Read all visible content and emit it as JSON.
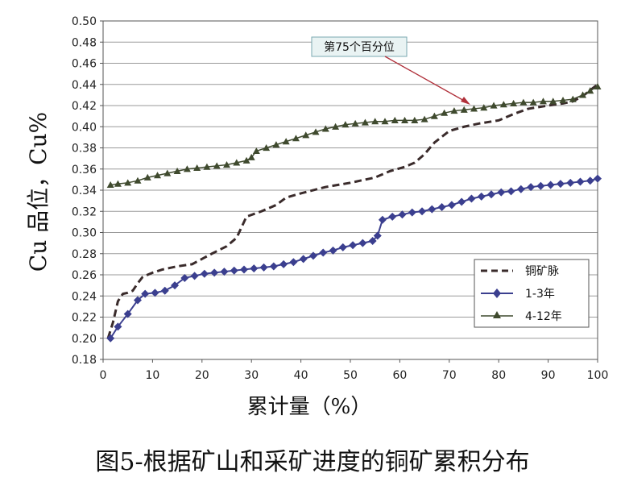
{
  "chart_data": {
    "type": "line",
    "ylabel": "Cu 品位，Cu%",
    "xlabel": "累计量（%）",
    "xlim": [
      0,
      100
    ],
    "ylim": [
      0.18,
      0.5
    ],
    "x_ticks": [
      "0",
      "10",
      "20",
      "30",
      "40",
      "50",
      "60",
      "70",
      "80",
      "90",
      "100"
    ],
    "y_ticks": [
      "0.18",
      "0.20",
      "0.22",
      "0.24",
      "0.26",
      "0.28",
      "0.30",
      "0.32",
      "0.34",
      "0.36",
      "0.38",
      "0.40",
      "0.42",
      "0.44",
      "0.46",
      "0.48",
      "0.50"
    ],
    "grid": true,
    "legend_position": "bottom-right",
    "annotation": {
      "text": "第75个百分位",
      "points_to": [
        75,
        0.42
      ]
    },
    "series": [
      {
        "name": "铜矿脉",
        "style": "dashed",
        "color": "#3a2b2b",
        "points": [
          [
            1,
            0.2
          ],
          [
            2,
            0.215
          ],
          [
            3,
            0.235
          ],
          [
            4,
            0.242
          ],
          [
            5,
            0.243
          ],
          [
            6,
            0.245
          ],
          [
            7,
            0.252
          ],
          [
            8,
            0.258
          ],
          [
            10,
            0.262
          ],
          [
            12,
            0.265
          ],
          [
            15,
            0.268
          ],
          [
            18,
            0.27
          ],
          [
            20,
            0.275
          ],
          [
            22,
            0.28
          ],
          [
            25,
            0.287
          ],
          [
            27,
            0.295
          ],
          [
            29,
            0.315
          ],
          [
            32,
            0.32
          ],
          [
            35,
            0.326
          ],
          [
            37,
            0.333
          ],
          [
            40,
            0.337
          ],
          [
            45,
            0.343
          ],
          [
            50,
            0.347
          ],
          [
            55,
            0.352
          ],
          [
            58,
            0.358
          ],
          [
            61,
            0.362
          ],
          [
            63,
            0.366
          ],
          [
            65,
            0.374
          ],
          [
            67,
            0.385
          ],
          [
            70,
            0.396
          ],
          [
            73,
            0.4
          ],
          [
            76,
            0.403
          ],
          [
            80,
            0.406
          ],
          [
            83,
            0.412
          ],
          [
            86,
            0.417
          ],
          [
            90,
            0.42
          ],
          [
            93,
            0.422
          ],
          [
            95,
            0.424
          ],
          [
            97,
            0.429
          ],
          [
            100,
            0.44
          ]
        ]
      },
      {
        "name": "1-3年",
        "style": "solid-diamond",
        "color": "#3b3f8f",
        "points": [
          [
            1.5,
            0.2
          ],
          [
            3,
            0.211
          ],
          [
            5,
            0.223
          ],
          [
            7,
            0.236
          ],
          [
            8.5,
            0.242
          ],
          [
            10.5,
            0.243
          ],
          [
            12.5,
            0.245
          ],
          [
            14.5,
            0.25
          ],
          [
            16.5,
            0.257
          ],
          [
            18.5,
            0.259
          ],
          [
            20.5,
            0.261
          ],
          [
            22.5,
            0.262
          ],
          [
            24.5,
            0.263
          ],
          [
            26.5,
            0.264
          ],
          [
            28.5,
            0.265
          ],
          [
            30.5,
            0.266
          ],
          [
            32.5,
            0.267
          ],
          [
            34.5,
            0.268
          ],
          [
            36.5,
            0.27
          ],
          [
            38.5,
            0.272
          ],
          [
            40.5,
            0.275
          ],
          [
            42.5,
            0.278
          ],
          [
            44.5,
            0.281
          ],
          [
            46.5,
            0.283
          ],
          [
            48.5,
            0.286
          ],
          [
            50.5,
            0.288
          ],
          [
            52.5,
            0.29
          ],
          [
            54.5,
            0.292
          ],
          [
            55.5,
            0.297
          ],
          [
            56.5,
            0.312
          ],
          [
            58.5,
            0.315
          ],
          [
            60.5,
            0.317
          ],
          [
            62.5,
            0.319
          ],
          [
            64.5,
            0.32
          ],
          [
            66.5,
            0.322
          ],
          [
            68.5,
            0.324
          ],
          [
            70.5,
            0.326
          ],
          [
            72.5,
            0.329
          ],
          [
            74.5,
            0.332
          ],
          [
            76.5,
            0.334
          ],
          [
            78.5,
            0.336
          ],
          [
            80.5,
            0.338
          ],
          [
            82.5,
            0.339
          ],
          [
            84.5,
            0.341
          ],
          [
            86.5,
            0.343
          ],
          [
            88.5,
            0.344
          ],
          [
            90.5,
            0.345
          ],
          [
            92.5,
            0.346
          ],
          [
            94.5,
            0.347
          ],
          [
            96.5,
            0.348
          ],
          [
            98.5,
            0.349
          ],
          [
            100,
            0.351
          ]
        ]
      },
      {
        "name": "4-12年",
        "style": "solid-triangle",
        "color": "#3f4a2e",
        "points": [
          [
            1.5,
            0.345
          ],
          [
            3,
            0.346
          ],
          [
            5,
            0.347
          ],
          [
            7,
            0.349
          ],
          [
            9,
            0.352
          ],
          [
            11,
            0.354
          ],
          [
            13,
            0.356
          ],
          [
            15,
            0.358
          ],
          [
            17,
            0.36
          ],
          [
            19,
            0.361
          ],
          [
            21,
            0.362
          ],
          [
            23,
            0.363
          ],
          [
            25,
            0.364
          ],
          [
            27,
            0.366
          ],
          [
            29,
            0.368
          ],
          [
            30,
            0.371
          ],
          [
            31,
            0.377
          ],
          [
            33,
            0.38
          ],
          [
            35,
            0.383
          ],
          [
            37,
            0.386
          ],
          [
            39,
            0.389
          ],
          [
            41,
            0.392
          ],
          [
            43,
            0.395
          ],
          [
            45,
            0.398
          ],
          [
            47,
            0.4
          ],
          [
            49,
            0.402
          ],
          [
            51,
            0.403
          ],
          [
            53,
            0.404
          ],
          [
            55,
            0.405
          ],
          [
            57,
            0.405
          ],
          [
            59,
            0.406
          ],
          [
            61,
            0.406
          ],
          [
            63,
            0.406
          ],
          [
            65,
            0.407
          ],
          [
            67,
            0.41
          ],
          [
            69,
            0.413
          ],
          [
            71,
            0.415
          ],
          [
            73,
            0.416
          ],
          [
            75,
            0.417
          ],
          [
            77,
            0.418
          ],
          [
            79,
            0.42
          ],
          [
            81,
            0.421
          ],
          [
            83,
            0.422
          ],
          [
            85,
            0.423
          ],
          [
            87,
            0.423
          ],
          [
            89,
            0.424
          ],
          [
            91,
            0.424
          ],
          [
            93,
            0.425
          ],
          [
            95,
            0.426
          ],
          [
            97,
            0.43
          ],
          [
            98.5,
            0.434
          ],
          [
            100,
            0.438
          ]
        ]
      }
    ]
  },
  "caption": "图5-根据矿山和采矿进度的铜矿累积分布"
}
